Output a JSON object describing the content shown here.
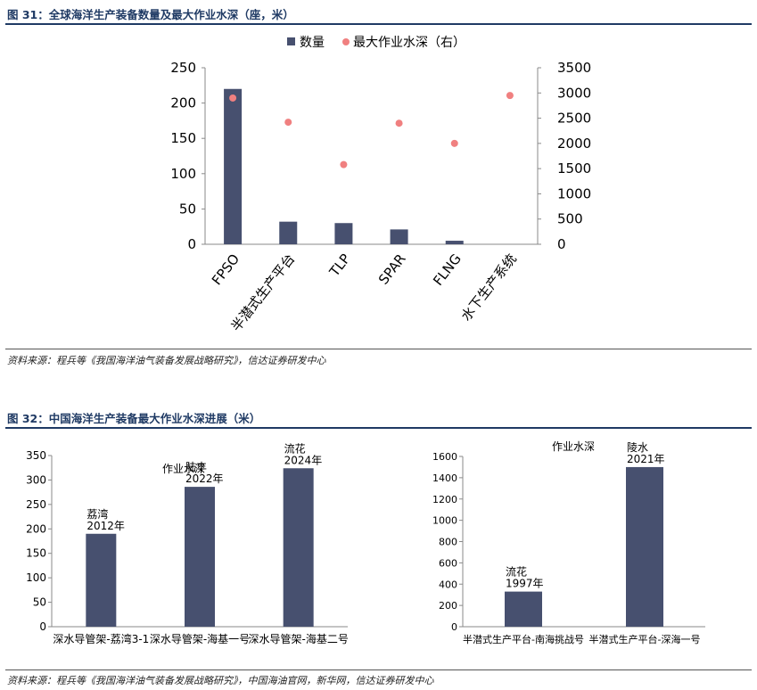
{
  "figure31": {
    "title": "图 31：全球海洋生产装备数量及最大作业水深（座，米）",
    "source": "资料来源：程兵等《我国海洋油气装备发展战略研究》，信达证券研发中心"
  },
  "figure32": {
    "title": "图 32：中国海洋生产装备最大作业水深进展（米）",
    "source": "资料来源：程兵等《我国海洋油气装备发展战略研究》，中国海油官网，新华网，信达证券研发中心"
  },
  "colors": {
    "bar": "#47506f",
    "dot": "#f08080",
    "title": "#1f3a64"
  },
  "chart_data": [
    {
      "type": "bar",
      "categories": [
        "FPSO",
        "半潜式生产平台",
        "TLP",
        "SPAR",
        "FLNG",
        "水下生产系统"
      ],
      "series": [
        {
          "name": "数量",
          "type": "bar",
          "axis": "left",
          "values": [
            220,
            32,
            30,
            21,
            5,
            0
          ]
        },
        {
          "name": "最大作业水深（右）",
          "type": "scatter",
          "axis": "right",
          "values": [
            2900,
            2420,
            1580,
            2400,
            2000,
            2950
          ]
        }
      ],
      "ylim": [
        0,
        250
      ],
      "yticks": [
        0,
        50,
        100,
        150,
        200,
        250
      ],
      "y2lim": [
        0,
        3500
      ],
      "y2ticks": [
        0,
        500,
        1000,
        1500,
        2000,
        2500,
        3000,
        3500
      ],
      "legend": "top",
      "grid": false
    },
    {
      "type": "bar",
      "title": "作业水深",
      "categories": [
        "深水导管架-荔湾3-1",
        "深水导管架-海基一号",
        "深水导管架-海基二号"
      ],
      "values": [
        190,
        286,
        324
      ],
      "bar_labels": [
        [
          "荔湾",
          "2012年"
        ],
        [
          "陆丰",
          "2022年"
        ],
        [
          "流花",
          "2024年"
        ]
      ],
      "ylim": [
        0,
        350
      ],
      "yticks": [
        0,
        50,
        100,
        150,
        200,
        250,
        300,
        350
      ],
      "grid": false
    },
    {
      "type": "bar",
      "title": "作业水深",
      "categories": [
        "半潜式生产平台-南海挑战号",
        "半潜式生产平台-深海一号"
      ],
      "values": [
        330,
        1500
      ],
      "bar_labels": [
        [
          "流花",
          "1997年"
        ],
        [
          "陵水",
          "2021年"
        ]
      ],
      "ylim": [
        0,
        1600
      ],
      "yticks": [
        0,
        200,
        400,
        600,
        800,
        1000,
        1200,
        1400,
        1600
      ],
      "grid": false
    }
  ]
}
